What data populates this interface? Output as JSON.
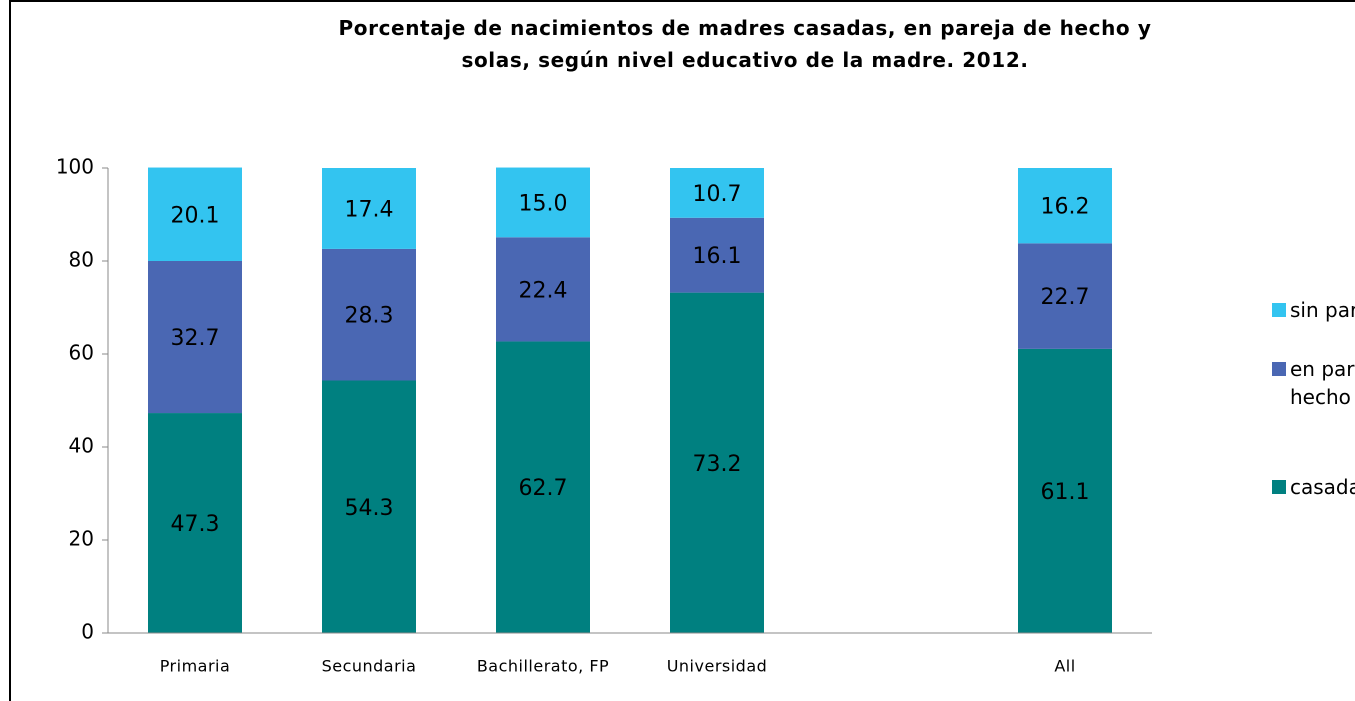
{
  "chart_data": {
    "type": "stacked_bar",
    "title": [
      "Porcentaje de nacimientos de madres casadas, en pareja de hecho y",
      "solas, según nivel educativo de la madre. 2012."
    ],
    "categories": [
      "Primaria",
      "Secundaria",
      "Bachillerato,  FP",
      "Universidad",
      null,
      "All"
    ],
    "series": [
      {
        "name": "casada",
        "color": "#008080",
        "values": [
          47.3,
          54.3,
          62.7,
          73.2,
          null,
          61.1
        ],
        "value_labels": [
          "47.3",
          "54.3",
          "62.7",
          "73.2",
          null,
          "61.1"
        ]
      },
      {
        "name": "en pareja de hecho",
        "color": "#4a67b3",
        "values": [
          32.7,
          28.3,
          22.4,
          16.1,
          null,
          22.7
        ],
        "value_labels": [
          "32.7",
          "28.3",
          "22.4",
          "16.1",
          null,
          "22.7"
        ]
      },
      {
        "name": "sin pareja",
        "color": "#33c4f0",
        "values": [
          20.1,
          17.4,
          15.0,
          10.7,
          null,
          16.2
        ],
        "value_labels": [
          "20.1",
          "17.4",
          "15.0",
          "10.7",
          null,
          "16.2"
        ]
      }
    ],
    "ylim": [
      0,
      100
    ],
    "yticks": [
      0,
      20,
      40,
      60,
      80,
      100
    ],
    "grid": false,
    "legend": "right"
  }
}
